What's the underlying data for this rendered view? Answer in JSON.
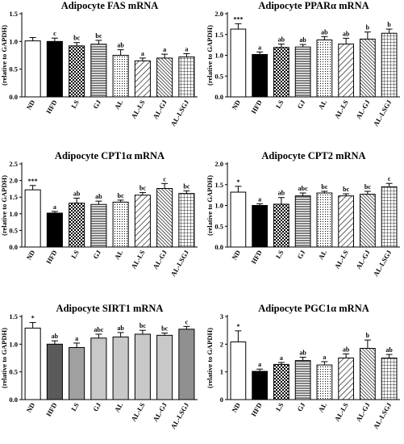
{
  "chart_data": [
    {
      "type": "bar",
      "title": "Adipocyte FAS mRNA",
      "ylabel": "(relative to GAPDH)",
      "categories": [
        "ND",
        "HFD",
        "LS",
        "GJ",
        "AL",
        "AL-LS",
        "AL-GJ",
        "AL-LSGJ"
      ],
      "values": [
        1.01,
        1.0,
        0.92,
        0.95,
        0.75,
        0.65,
        0.7,
        0.72
      ],
      "errors": [
        0.06,
        0.06,
        0.06,
        0.07,
        0.1,
        0.05,
        0.07,
        0.06
      ],
      "significance": [
        "",
        "c",
        "bc",
        "bc",
        "ab",
        "a",
        "a",
        "a"
      ],
      "ylim": [
        0,
        1.5
      ],
      "yticks": [
        "0.0",
        "0.5",
        "1.0",
        "1.5"
      ],
      "grid": false
    },
    {
      "type": "bar",
      "title": "Adipocyte PPARα mRNA",
      "ylabel": "(relative to GAPDH)",
      "categories": [
        "ND",
        "HFD",
        "LS",
        "GJ",
        "AL",
        "AL-LS",
        "AL-GJ",
        "AL-LSGJ"
      ],
      "values": [
        1.63,
        1.02,
        1.19,
        1.2,
        1.37,
        1.27,
        1.39,
        1.53
      ],
      "errors": [
        0.13,
        0.06,
        0.08,
        0.06,
        0.08,
        0.14,
        0.17,
        0.1
      ],
      "significance": [
        "***",
        "a",
        "ab",
        "ab",
        "ab",
        "ab",
        "b",
        "b"
      ],
      "ylim": [
        0,
        2.0
      ],
      "yticks": [
        "0.0",
        "0.5",
        "1.0",
        "1.5",
        "2.0"
      ],
      "grid": false
    },
    {
      "type": "bar",
      "title": "Adipocyte CPT1α mRNA",
      "ylabel": "(relative to GAPDH)",
      "categories": [
        "ND",
        "HFD",
        "LS",
        "GJ",
        "AL",
        "AL-LS",
        "AL-GJ",
        "AL-LSGJ"
      ],
      "values": [
        1.72,
        1.02,
        1.32,
        1.28,
        1.35,
        1.56,
        1.76,
        1.61
      ],
      "errors": [
        0.13,
        0.05,
        0.15,
        0.1,
        0.06,
        0.08,
        0.15,
        0.08
      ],
      "significance": [
        "***",
        "a",
        "ab",
        "ab",
        "bc",
        "bc",
        "c",
        "bc"
      ],
      "ylim": [
        0,
        2.5
      ],
      "yticks": [
        "0.0",
        "0.5",
        "1.0",
        "1.5",
        "2.0",
        "2.5"
      ],
      "grid": false
    },
    {
      "type": "bar",
      "title": "Adipocyte CPT2 mRNA",
      "ylabel": "(relative to GAPDH)",
      "categories": [
        "ND",
        "HFD",
        "LS",
        "GJ",
        "AL",
        "AL-LS",
        "AL-GJ",
        "AL-LSGJ"
      ],
      "values": [
        1.32,
        1.0,
        1.03,
        1.23,
        1.3,
        1.23,
        1.27,
        1.45
      ],
      "errors": [
        0.14,
        0.04,
        0.16,
        0.07,
        0.04,
        0.05,
        0.07,
        0.08
      ],
      "significance": [
        "*",
        "a",
        "ab",
        "abc",
        "bc",
        "bc",
        "bc",
        "c"
      ],
      "ylim": [
        0,
        2.0
      ],
      "yticks": [
        "0.0",
        "0.5",
        "1.0",
        "1.5",
        "2.0"
      ],
      "grid": false
    },
    {
      "type": "bar",
      "title": "Adipocyte SIRT1 mRNA",
      "ylabel": "(relative to GAPDH)",
      "categories": [
        "ND",
        "HFD",
        "LS",
        "GJ",
        "AL",
        "AL-LS",
        "AL-GJ",
        "AL-LSGJ"
      ],
      "values": [
        1.29,
        1.0,
        0.94,
        1.11,
        1.13,
        1.18,
        1.16,
        1.27
      ],
      "errors": [
        0.1,
        0.06,
        0.08,
        0.07,
        0.08,
        0.07,
        0.04,
        0.05
      ],
      "significance": [
        "*",
        "ab",
        "a",
        "abc",
        "ab",
        "bc",
        "bc",
        "c"
      ],
      "ylim": [
        0,
        1.5
      ],
      "yticks": [
        "0.0",
        "0.5",
        "1.0",
        "1.5"
      ],
      "grid": false
    },
    {
      "type": "bar",
      "title": "Adipocyte PGC1α mRNA",
      "ylabel": "(relative to GAPDH)",
      "categories": [
        "ND",
        "HFD",
        "LS",
        "GJ",
        "AL",
        "AL-LS",
        "AL-GJ",
        "AL-LSGJ"
      ],
      "values": [
        2.08,
        1.02,
        1.27,
        1.41,
        1.25,
        1.5,
        1.85,
        1.5
      ],
      "errors": [
        0.4,
        0.08,
        0.07,
        0.12,
        0.12,
        0.15,
        0.3,
        0.13
      ],
      "significance": [
        "*",
        "a",
        "a",
        "ab",
        "a",
        "ab",
        "b",
        "ab"
      ],
      "ylim": [
        0,
        3
      ],
      "yticks": [
        "0",
        "1",
        "2",
        "3"
      ],
      "grid": false
    }
  ],
  "bar_fills": [
    "#ffffff",
    "#000000",
    "pattern:check",
    "pattern:hlines",
    "pattern:dots",
    "pattern:diag",
    "pattern:diag-dense",
    "pattern:grid"
  ],
  "sirt1_fills": [
    "#ffffff",
    "#5a5a5a",
    "#a0a0a0",
    "#c8c8c8",
    "#c8c8c8",
    "#c8c8c8",
    "#c8c8c8",
    "#909090"
  ]
}
